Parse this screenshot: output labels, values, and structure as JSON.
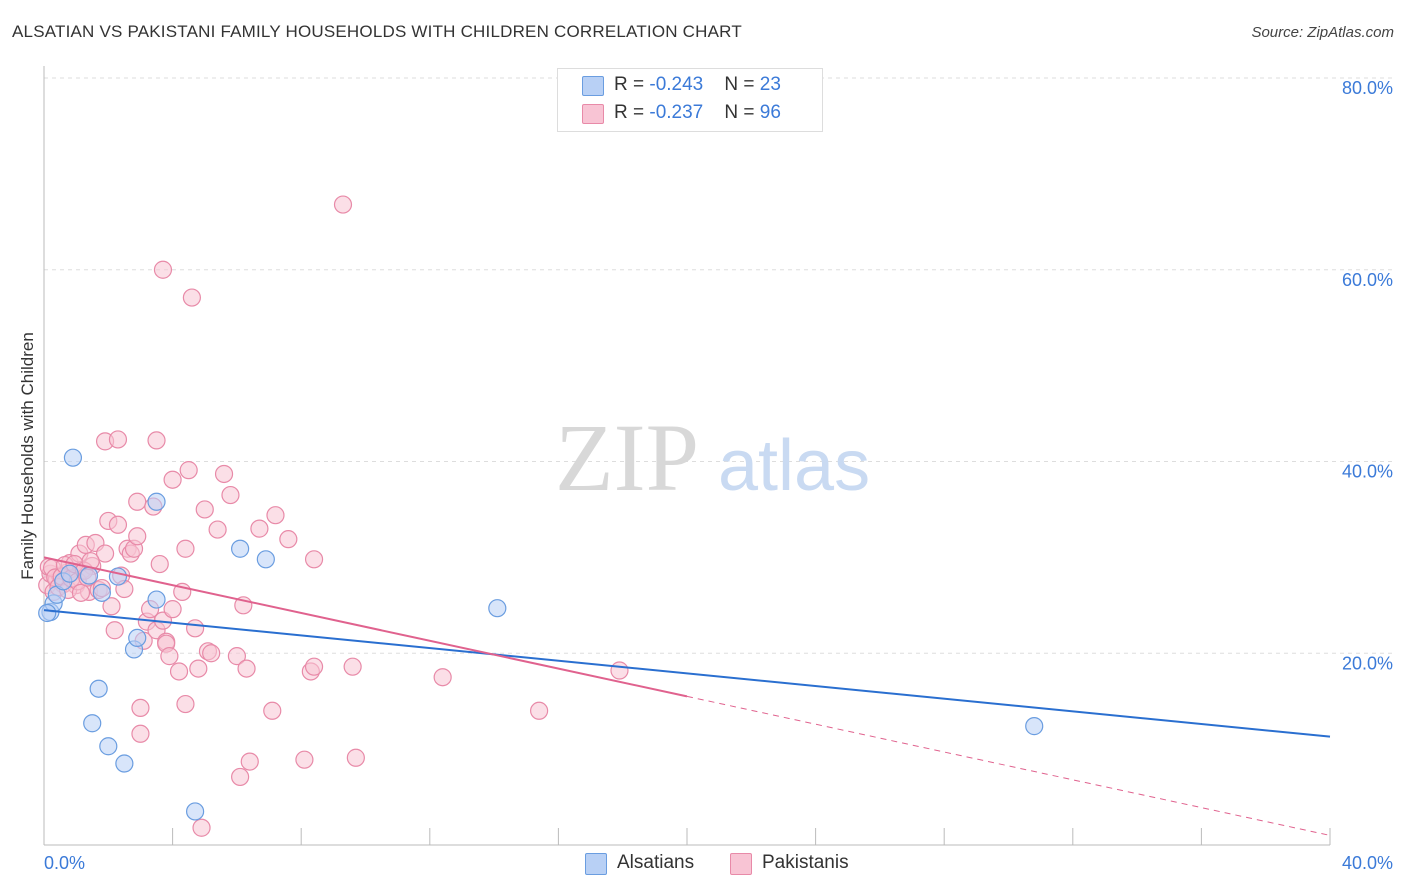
{
  "title": "ALSATIAN VS PAKISTANI FAMILY HOUSEHOLDS WITH CHILDREN CORRELATION CHART",
  "source": "Source: ZipAtlas.com",
  "watermark": {
    "zip": "ZIP",
    "atlas": "atlas"
  },
  "legend_top": [
    {
      "r_label": "R = ",
      "r_value": "-0.243",
      "n_label": "N = ",
      "n_value": "23"
    },
    {
      "r_label": "R = ",
      "r_value": "-0.237",
      "n_label": "N = ",
      "n_value": "96"
    }
  ],
  "legend_bottom": [
    "Alsatians",
    "Pakistanis"
  ],
  "colors": {
    "alsatian_fill": "#b8d0f5",
    "alsatian_stroke": "#6a9de0",
    "alsatian_line": "#2a6fd0",
    "pakistani_fill": "#f8c4d4",
    "pakistani_stroke": "#e88aa8",
    "pakistani_line": "#e0628e",
    "tick_label": "#3b7ad8"
  },
  "chart_data": {
    "type": "scatter",
    "ylabel": "Family Households with Children",
    "xlim": [
      0,
      40
    ],
    "ylim": [
      0,
      80
    ],
    "x_tick_labels": [
      {
        "value": 0,
        "label": "0.0%"
      },
      {
        "value": 40,
        "label": "40.0%"
      }
    ],
    "y_tick_labels": [
      {
        "value": 20,
        "label": "20.0%"
      },
      {
        "value": 40,
        "label": "40.0%"
      },
      {
        "value": 60,
        "label": "60.0%"
      },
      {
        "value": 80,
        "label": "80.0%"
      }
    ],
    "grid": true,
    "series": [
      {
        "name": "Alsatians",
        "points": [
          [
            0.2,
            24.3
          ],
          [
            0.3,
            25.2
          ],
          [
            0.4,
            26.1
          ],
          [
            0.6,
            27.5
          ],
          [
            0.8,
            28.3
          ],
          [
            0.9,
            40.4
          ],
          [
            1.4,
            28.1
          ],
          [
            1.5,
            12.7
          ],
          [
            1.7,
            16.3
          ],
          [
            1.8,
            26.3
          ],
          [
            2.0,
            10.3
          ],
          [
            2.3,
            28.0
          ],
          [
            2.5,
            8.5
          ],
          [
            2.8,
            20.4
          ],
          [
            2.9,
            21.6
          ],
          [
            3.5,
            35.8
          ],
          [
            3.5,
            25.6
          ],
          [
            4.7,
            3.5
          ],
          [
            6.1,
            30.9
          ],
          [
            6.9,
            29.8
          ],
          [
            14.1,
            24.7
          ],
          [
            30.8,
            12.4
          ],
          [
            0.1,
            24.2
          ]
        ]
      },
      {
        "name": "Pakistanis",
        "points": [
          [
            0.1,
            27.1
          ],
          [
            0.2,
            28.3
          ],
          [
            0.3,
            26.4
          ],
          [
            0.4,
            27.7
          ],
          [
            0.5,
            28.1
          ],
          [
            0.6,
            27.2
          ],
          [
            0.7,
            28.4
          ],
          [
            0.8,
            29.4
          ],
          [
            0.9,
            28.5
          ],
          [
            1.0,
            27.1
          ],
          [
            1.1,
            30.4
          ],
          [
            1.2,
            28.7
          ],
          [
            1.3,
            31.3
          ],
          [
            1.4,
            26.4
          ],
          [
            1.5,
            29.1
          ],
          [
            1.6,
            31.5
          ],
          [
            1.7,
            26.6
          ],
          [
            1.8,
            26.8
          ],
          [
            1.9,
            30.4
          ],
          [
            1.9,
            42.1
          ],
          [
            2.0,
            33.8
          ],
          [
            2.1,
            24.9
          ],
          [
            2.2,
            22.4
          ],
          [
            2.3,
            33.4
          ],
          [
            2.3,
            42.3
          ],
          [
            2.4,
            28.1
          ],
          [
            2.5,
            26.7
          ],
          [
            2.6,
            30.9
          ],
          [
            2.7,
            30.4
          ],
          [
            2.8,
            30.9
          ],
          [
            2.9,
            32.2
          ],
          [
            2.9,
            35.8
          ],
          [
            3.0,
            11.6
          ],
          [
            3.0,
            14.3
          ],
          [
            3.1,
            21.3
          ],
          [
            3.2,
            23.3
          ],
          [
            3.3,
            24.6
          ],
          [
            3.4,
            35.3
          ],
          [
            3.5,
            22.4
          ],
          [
            3.5,
            42.2
          ],
          [
            3.6,
            29.3
          ],
          [
            3.7,
            23.4
          ],
          [
            3.8,
            21.2
          ],
          [
            3.8,
            21.0
          ],
          [
            3.9,
            19.7
          ],
          [
            4.0,
            24.6
          ],
          [
            4.0,
            38.1
          ],
          [
            4.2,
            18.1
          ],
          [
            4.3,
            26.4
          ],
          [
            4.4,
            14.7
          ],
          [
            4.4,
            30.9
          ],
          [
            4.5,
            39.1
          ],
          [
            4.7,
            22.6
          ],
          [
            4.8,
            18.4
          ],
          [
            4.9,
            1.8
          ],
          [
            5.0,
            35.0
          ],
          [
            5.1,
            20.2
          ],
          [
            5.2,
            20.0
          ],
          [
            5.4,
            32.9
          ],
          [
            5.6,
            38.7
          ],
          [
            5.8,
            36.5
          ],
          [
            6.0,
            19.7
          ],
          [
            6.1,
            7.1
          ],
          [
            6.2,
            25.0
          ],
          [
            6.3,
            18.4
          ],
          [
            6.4,
            8.7
          ],
          [
            6.7,
            33.0
          ],
          [
            7.1,
            14.0
          ],
          [
            7.2,
            34.4
          ],
          [
            7.6,
            31.9
          ],
          [
            8.1,
            8.9
          ],
          [
            8.3,
            18.1
          ],
          [
            8.4,
            18.6
          ],
          [
            8.4,
            29.8
          ],
          [
            9.3,
            66.8
          ],
          [
            9.6,
            18.6
          ],
          [
            9.7,
            9.1
          ],
          [
            3.7,
            60.0
          ],
          [
            4.6,
            57.1
          ],
          [
            12.4,
            17.5
          ],
          [
            15.4,
            14.0
          ],
          [
            17.9,
            18.2
          ],
          [
            0.15,
            29.0
          ],
          [
            0.25,
            28.9
          ],
          [
            0.35,
            27.9
          ],
          [
            0.45,
            26.9
          ],
          [
            0.55,
            28.0
          ],
          [
            0.65,
            29.2
          ],
          [
            0.75,
            26.6
          ],
          [
            0.85,
            27.8
          ],
          [
            0.95,
            29.3
          ],
          [
            1.05,
            27.5
          ],
          [
            1.15,
            26.3
          ],
          [
            1.25,
            28.6
          ],
          [
            1.35,
            27.9
          ],
          [
            1.45,
            29.6
          ]
        ]
      }
    ],
    "trendlines": [
      {
        "series": "Alsatians",
        "from": [
          0,
          24.5
        ],
        "to": [
          40,
          11.3
        ],
        "style": "solid"
      },
      {
        "series": "Pakistanis",
        "from": [
          0,
          30.0
        ],
        "to": [
          20,
          15.5
        ],
        "style": "solid"
      },
      {
        "series": "Pakistanis",
        "from": [
          20,
          15.5
        ],
        "to": [
          40,
          1.0
        ],
        "style": "dashed"
      }
    ]
  }
}
